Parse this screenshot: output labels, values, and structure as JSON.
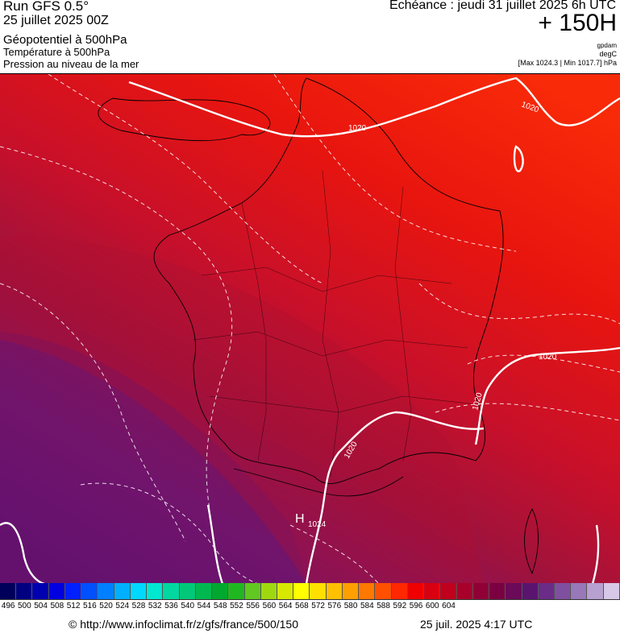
{
  "header": {
    "run_title": "Run GFS 0.5°",
    "run_date": "25 juillet 2025 00Z",
    "parameters": [
      "Géopotentiel à 500hPa",
      "Température à 500hPa",
      "Pression au niveau de la mer"
    ],
    "echeance": "Echéance : jeudi 31 juillet 2025 6h UTC",
    "offset": "+ 150H",
    "units": [
      "gpdam",
      "degC"
    ],
    "range": "[Max 1024.3 | Min 1017.7] hPa"
  },
  "map": {
    "isobar_labels": [
      "1020",
      "1020",
      "1020",
      "1020",
      "1020",
      "1024"
    ],
    "high_marker": "H",
    "colors": {
      "north": "#f21a0c",
      "center": "#c8102a",
      "south": "#7a1468",
      "isobar": "#ffffff",
      "borders": "#000000"
    }
  },
  "legend": {
    "ticks": [
      "496",
      "500",
      "504",
      "508",
      "512",
      "516",
      "520",
      "524",
      "528",
      "532",
      "536",
      "540",
      "544",
      "548",
      "552",
      "556",
      "560",
      "564",
      "568",
      "572",
      "576",
      "580",
      "584",
      "588",
      "592",
      "596",
      "600",
      "604"
    ],
    "colors": [
      "#00005a",
      "#000080",
      "#0000b0",
      "#0000e0",
      "#0020ff",
      "#0050ff",
      "#0080ff",
      "#00b0ff",
      "#00d8ff",
      "#00e8d0",
      "#00d8a0",
      "#00c878",
      "#00b850",
      "#00a830",
      "#20b820",
      "#60c820",
      "#a0d810",
      "#d8e800",
      "#ffff00",
      "#ffe000",
      "#ffc000",
      "#ffa000",
      "#ff7800",
      "#ff5000",
      "#ff2800",
      "#f00000",
      "#d80010",
      "#c0001c",
      "#a8002a",
      "#900036",
      "#7a0042",
      "#6a0a58",
      "#5a1470",
      "#6a2c88",
      "#8050a0",
      "#9878b8",
      "#b8a0d0",
      "#d8c8e8"
    ]
  },
  "footer": {
    "credit": "© http://www.infoclimat.fr/z/gfs/france/500/150",
    "timestamp": "25 juil. 2025  4:17 UTC"
  }
}
